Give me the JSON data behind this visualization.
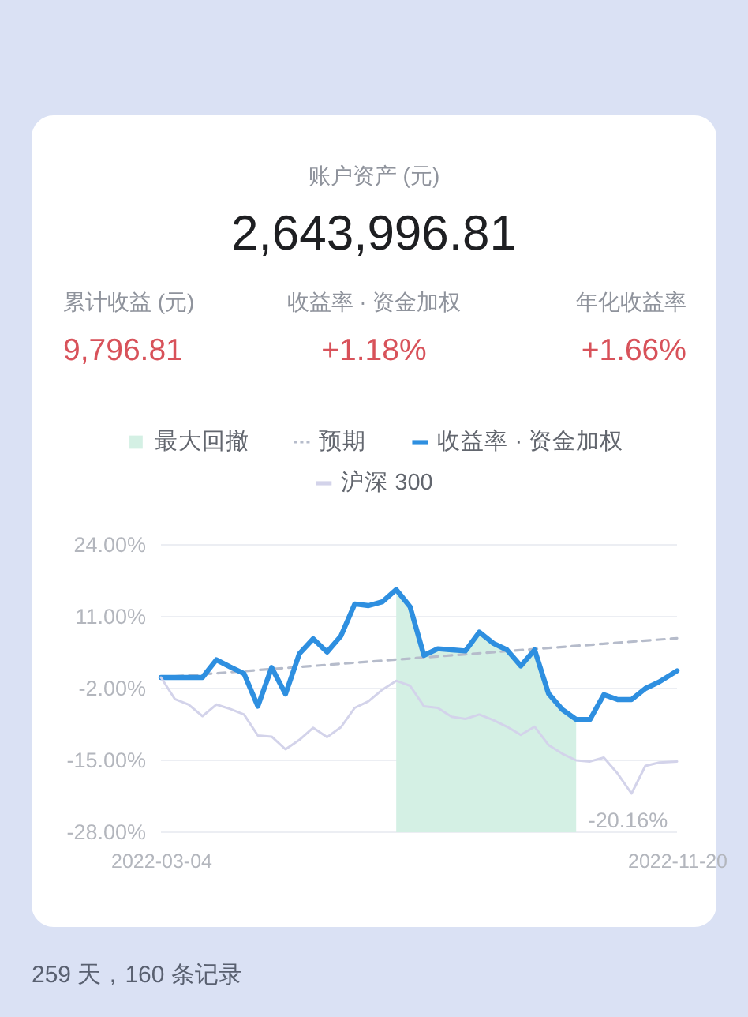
{
  "chart_data": {
    "type": "line",
    "title": "账户资产 (元)",
    "subtitle": "2,643,996.81",
    "annotations": [
      "累计收益 (元)",
      "9,796.81",
      "收益率 · 资金加权",
      "+1.18%",
      "年化收益率",
      "+1.66%",
      "-20.16%",
      "259 天，160 条记录"
    ],
    "xlim": [
      "2022-03-04",
      "2022-11-20"
    ],
    "xticks": [
      "2022-03-04",
      "2022-11-20"
    ],
    "ylim": [
      -28,
      24
    ],
    "yticks": [
      {
        "value": 24,
        "label": "24.00%"
      },
      {
        "value": 11,
        "label": "11.00%"
      },
      {
        "value": -2,
        "label": "-2.00%"
      },
      {
        "value": -15,
        "label": "-15.00%"
      },
      {
        "value": -28,
        "label": "-28.00%"
      }
    ],
    "grid": "y",
    "legend": "top",
    "marker": "none",
    "x": [
      "2022-03-04",
      "2022-03-11",
      "2022-03-18",
      "2022-03-25",
      "2022-04-01",
      "2022-04-08",
      "2022-04-15",
      "2022-04-22",
      "2022-04-29",
      "2022-05-06",
      "2022-05-13",
      "2022-05-20",
      "2022-05-27",
      "2022-06-03",
      "2022-06-10",
      "2022-06-17",
      "2022-06-24",
      "2022-07-01",
      "2022-07-08",
      "2022-07-15",
      "2022-07-22",
      "2022-07-29",
      "2022-08-05",
      "2022-08-12",
      "2022-08-19",
      "2022-08-26",
      "2022-09-02",
      "2022-09-09",
      "2022-09-16",
      "2022-09-23",
      "2022-09-30",
      "2022-10-07",
      "2022-10-14",
      "2022-10-21",
      "2022-10-28",
      "2022-11-04",
      "2022-11-11",
      "2022-11-20"
    ],
    "series": [
      {
        "name": "最大回撤",
        "type": "area",
        "color": "#d4f0e4",
        "x": [
          "2022-07-01",
          "2022-07-08",
          "2022-07-15",
          "2022-07-22",
          "2022-07-29",
          "2022-08-05",
          "2022-08-12",
          "2022-08-19",
          "2022-08-26",
          "2022-09-02",
          "2022-09-09",
          "2022-09-16",
          "2022-09-23",
          "2022-09-30"
        ],
        "values": [
          null,
          null,
          null,
          null,
          null,
          null,
          null,
          null,
          null,
          null,
          null,
          null,
          null,
          null
        ],
        "lower": [
          -28,
          -28,
          -28,
          -28,
          -28,
          -28,
          -28,
          -28,
          -28,
          -28,
          -28,
          -28,
          -28,
          -28
        ],
        "upper": [
          15.9,
          12.8,
          4.0,
          5.2,
          5.0,
          4.8,
          8.2,
          6.2,
          5.0,
          2.1,
          5.0,
          -2.9,
          -5.8,
          -7.6
        ]
      },
      {
        "name": "预期",
        "color": "#b6bccb",
        "line_style": "dashed",
        "x": [
          "2022-03-04",
          "2022-11-20"
        ],
        "values": [
          0,
          7.1
        ]
      },
      {
        "name": "收益率 · 资金加权",
        "color": "#2e8fe0",
        "values": [
          0,
          0,
          0,
          0,
          3.2,
          1.9,
          0.7,
          -5.2,
          1.8,
          -3.0,
          4.3,
          7.0,
          4.6,
          7.5,
          13.3,
          13.0,
          13.7,
          15.9,
          12.8,
          4.0,
          5.2,
          5.0,
          4.8,
          8.2,
          6.2,
          5.0,
          2.1,
          5.0,
          -2.9,
          -5.8,
          -7.6,
          -7.6,
          -3.1,
          -4.0,
          -4.0,
          -2.0,
          -0.8,
          1.2
        ]
      },
      {
        "name": "沪深 300",
        "color": "#d3d3ea",
        "values": [
          0,
          -3.9,
          -4.9,
          -7.0,
          -4.9,
          -5.7,
          -6.7,
          -10.5,
          -10.7,
          -13.0,
          -11.3,
          -9.1,
          -10.8,
          -9.0,
          -5.5,
          -4.3,
          -2.2,
          -0.6,
          -1.5,
          -5.2,
          -5.5,
          -7.1,
          -7.5,
          -6.7,
          -7.7,
          -8.9,
          -10.4,
          -8.9,
          -12.2,
          -13.8,
          -15.0,
          -15.2,
          -14.5,
          -17.4,
          -21.0,
          -16.0,
          -15.4,
          -15.2
        ]
      }
    ]
  }
}
